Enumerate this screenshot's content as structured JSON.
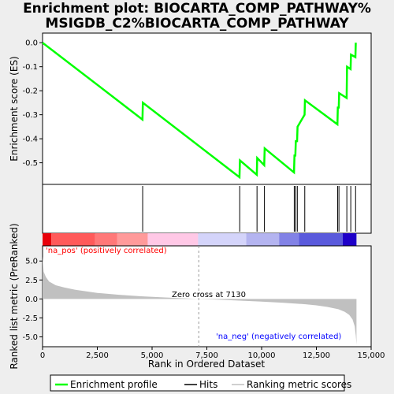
{
  "title_line1": "Enrichment plot: BIOCARTA_COMP_PATHWAY%",
  "title_line2": "MSIGDB_C2%BIOCARTA_COMP_PATHWAY",
  "colors": {
    "enrichment_line": "#00ff00",
    "hits": "#000000",
    "metric_fill": "#c0c0c0",
    "pos_label": "#ff0000",
    "neg_label": "#0000ff",
    "background": "#eeeeee",
    "plot_bg": "#ffffff"
  },
  "chart_data": [
    {
      "type": "line",
      "panel": "enrichment",
      "ylabel": "Enrichment score (ES)",
      "xlim": [
        0,
        15000
      ],
      "ylim": [
        -0.59,
        0.04
      ],
      "yticks": [
        "0.0",
        "-0.1",
        "-0.2",
        "-0.3",
        "-0.4",
        "-0.5"
      ],
      "ytick_values": [
        0.0,
        -0.1,
        -0.2,
        -0.3,
        -0.4,
        -0.5
      ],
      "series": [
        {
          "name": "Enrichment profile",
          "x": [
            0,
            4560,
            4580,
            8990,
            9010,
            9780,
            9800,
            10120,
            10140,
            11480,
            11500,
            11540,
            11560,
            11620,
            11640,
            11960,
            11980,
            13460,
            13480,
            13520,
            13540,
            13880,
            13900,
            14060,
            14080,
            14280,
            14300
          ],
          "values": [
            0.0,
            -0.32,
            -0.25,
            -0.56,
            -0.49,
            -0.55,
            -0.48,
            -0.51,
            -0.44,
            -0.54,
            -0.47,
            -0.47,
            -0.41,
            -0.41,
            -0.35,
            -0.3,
            -0.24,
            -0.34,
            -0.27,
            -0.27,
            -0.21,
            -0.23,
            -0.1,
            -0.11,
            -0.05,
            -0.06,
            0.0
          ]
        }
      ],
      "grid": false
    },
    {
      "type": "bar",
      "panel": "hits",
      "name": "Hits",
      "hit_positions": [
        4570,
        9000,
        9790,
        10130,
        11490,
        11550,
        11630,
        11970,
        13470,
        13530,
        13890,
        14070,
        14290
      ]
    },
    {
      "type": "area",
      "panel": "ranked_list",
      "name": "Ranking metric scores",
      "xlabel": "Rank in Ordered Dataset",
      "ylabel": "Ranked list metric (PreRanked)",
      "xlim": [
        0,
        15000
      ],
      "ylim": [
        -6.3,
        7.0
      ],
      "xticks": [
        "0",
        "2,500",
        "5,000",
        "7,500",
        "10,000",
        "12,500",
        "15,000"
      ],
      "xtick_values": [
        0,
        2500,
        5000,
        7500,
        10000,
        12500,
        15000
      ],
      "yticks": [
        "5.0",
        "2.5",
        "0.0",
        "-2.5",
        "-5.0"
      ],
      "ytick_values": [
        5.0,
        2.5,
        0.0,
        -2.5,
        -5.0
      ],
      "x": [
        0,
        50,
        150,
        300,
        600,
        1000,
        1500,
        2000,
        2500,
        3500,
        4500,
        5500,
        6500,
        7130,
        8000,
        9000,
        10000,
        11000,
        12000,
        12500,
        13000,
        13500,
        13800,
        14000,
        14150,
        14250,
        14300,
        14330
      ],
      "values": [
        5.6,
        3.6,
        2.9,
        2.3,
        1.8,
        1.5,
        1.2,
        1.0,
        0.8,
        0.55,
        0.35,
        0.2,
        0.08,
        0.0,
        -0.1,
        -0.22,
        -0.35,
        -0.5,
        -0.7,
        -0.85,
        -1.05,
        -1.35,
        -1.7,
        -2.1,
        -2.7,
        -3.6,
        -4.8,
        -6.0
      ],
      "zero_cross": 7130,
      "annotations": {
        "zero_cross_label": "Zero cross at 7130",
        "pos_label": "'na_pos' (positively correlated)",
        "neg_label": "'na_neg' (negatively correlated)"
      }
    }
  ],
  "legend": {
    "enrichment_profile": "Enrichment profile",
    "hits": "Hits",
    "ranking_metric": "Ranking metric scores"
  }
}
